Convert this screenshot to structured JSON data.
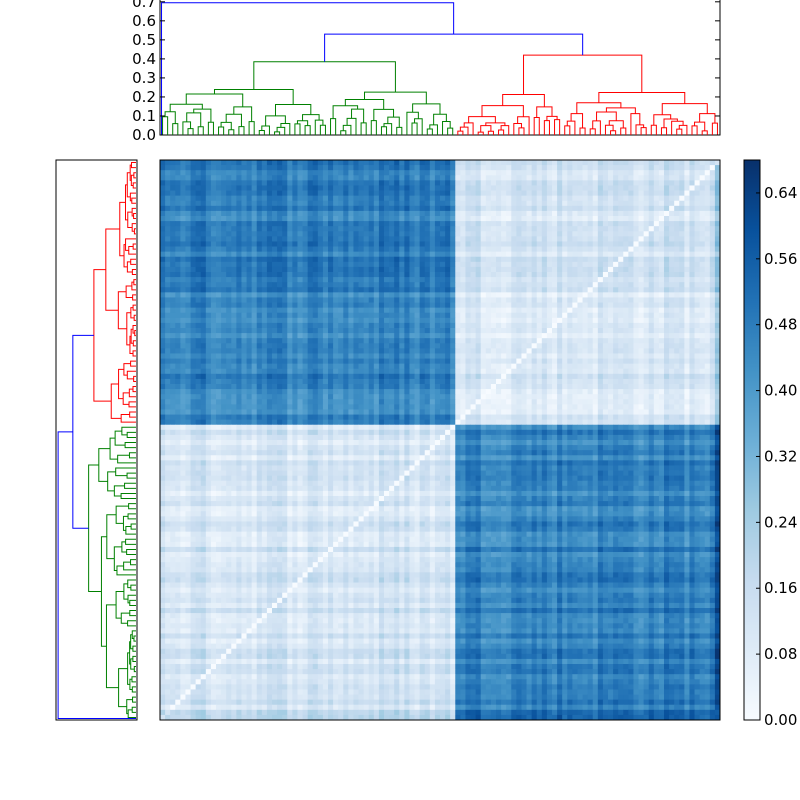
{
  "chart_data": [
    {
      "type": "dendrogram",
      "panel": "top",
      "y_ticks": [
        "0.0",
        "0.1",
        "0.2",
        "0.3",
        "0.4",
        "0.5",
        "0.6",
        "0.7"
      ],
      "ylim": [
        0,
        0.72
      ],
      "leaf_count": 110,
      "root_height": 0.695,
      "level_two_height": 0.53,
      "clusters": [
        {
          "color": "#008000",
          "leaves": 58,
          "top_height": 0.385
        },
        {
          "color": "#ff0000",
          "leaves": 52,
          "top_height": 0.42
        }
      ],
      "link_color_above_threshold": "#0000ff"
    },
    {
      "type": "dendrogram",
      "panel": "left",
      "leaf_count": 110,
      "clusters": [
        {
          "color": "#ff0000",
          "leaves": 52
        },
        {
          "color": "#008000",
          "leaves": 58
        }
      ],
      "link_color_above_threshold": "#0000ff"
    },
    {
      "type": "heatmap",
      "colormap": "Blues",
      "n": 110,
      "block_sizes": [
        58,
        52
      ],
      "within_block_level": 0.12,
      "between_block_level": 0.47,
      "colorbar_range": [
        0.0,
        0.68
      ],
      "colorbar_ticks": [
        "0.00",
        "0.08",
        "0.16",
        "0.24",
        "0.32",
        "0.40",
        "0.48",
        "0.56",
        "0.64"
      ]
    }
  ]
}
